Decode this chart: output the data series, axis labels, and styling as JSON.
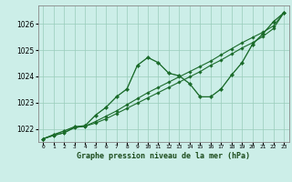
{
  "background_color": "#cceee8",
  "grid_color": "#99ccbb",
  "line_color": "#1a6b2a",
  "title": "Graphe pression niveau de la mer (hPa)",
  "ylim": [
    1021.5,
    1026.7
  ],
  "yticks": [
    1022,
    1023,
    1024,
    1025,
    1026
  ],
  "xlim": [
    -0.5,
    23.5
  ],
  "line_peak": [
    1021.62,
    1021.78,
    1021.92,
    1022.08,
    1022.12,
    1022.52,
    1022.82,
    1023.22,
    1023.52,
    1024.42,
    1024.72,
    1024.52,
    1024.12,
    1024.02,
    1023.72,
    1023.22,
    1023.22,
    1023.52,
    1024.05,
    1024.52,
    1025.22,
    1025.62,
    1026.08,
    1026.42
  ],
  "line_steady1": [
    1021.62,
    1021.75,
    1021.85,
    1022.05,
    1022.1,
    1022.22,
    1022.38,
    1022.58,
    1022.78,
    1022.98,
    1023.18,
    1023.38,
    1023.58,
    1023.78,
    1023.98,
    1024.18,
    1024.42,
    1024.62,
    1024.85,
    1025.08,
    1025.28,
    1025.52,
    1025.82,
    1026.42
  ],
  "line_steady2": [
    1021.62,
    1021.75,
    1021.85,
    1022.05,
    1022.1,
    1022.28,
    1022.48,
    1022.68,
    1022.92,
    1023.15,
    1023.38,
    1023.58,
    1023.78,
    1023.98,
    1024.18,
    1024.38,
    1024.58,
    1024.82,
    1025.05,
    1025.28,
    1025.48,
    1025.68,
    1025.92,
    1026.42
  ]
}
